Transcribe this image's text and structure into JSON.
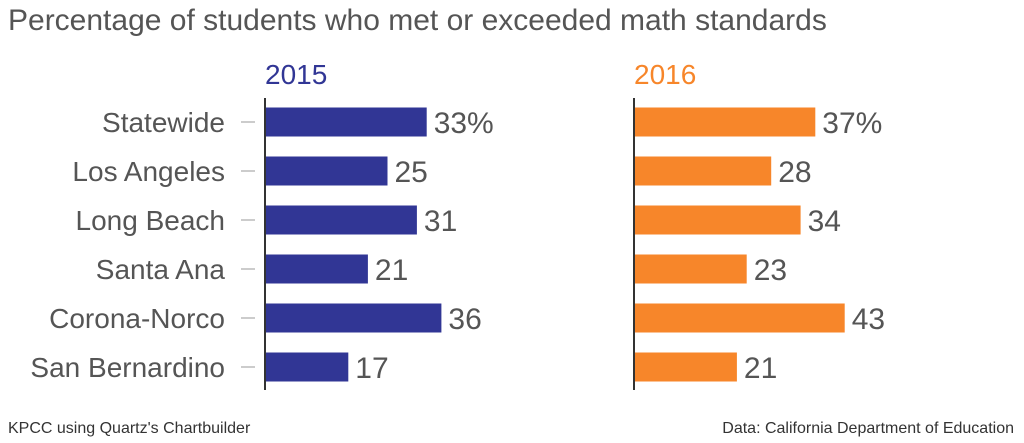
{
  "title": "Percentage of students who met or exceeded math standards",
  "footer": {
    "left": "KPCC using Quartz's Chartbuilder",
    "right": "Data: California Department of Education"
  },
  "colors": {
    "s2015": "#313695",
    "s2016": "#f7862a",
    "text": "#555555",
    "axis": "#333333",
    "tick": "#cccccc"
  },
  "chart_data": {
    "type": "bar",
    "orientation": "horizontal",
    "categories": [
      "Statewide",
      "Los Angeles",
      "Long Beach",
      "Santa Ana",
      "Corona-Norco",
      "San Bernardino"
    ],
    "series": [
      {
        "name": "2015",
        "values": [
          33,
          25,
          31,
          21,
          36,
          17
        ],
        "labels": [
          "33%",
          "25",
          "31",
          "21",
          "36",
          "17"
        ]
      },
      {
        "name": "2016",
        "values": [
          37,
          28,
          34,
          23,
          43,
          21
        ],
        "labels": [
          "37%",
          "28",
          "34",
          "23",
          "43",
          "21"
        ]
      }
    ],
    "unit": "%",
    "grid": false,
    "layout": "small multiples, side by side"
  }
}
